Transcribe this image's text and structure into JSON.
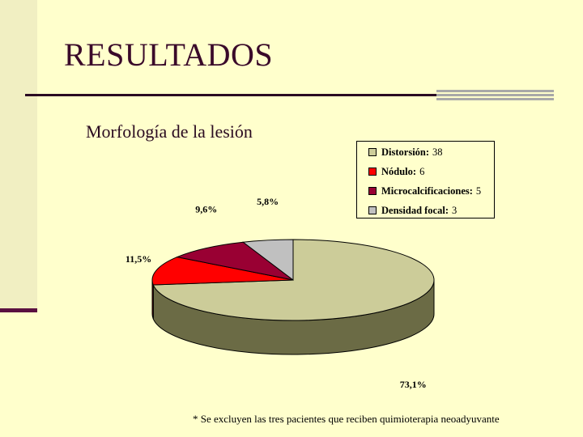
{
  "slide": {
    "title": "RESULTADOS",
    "subtitle": "Morfología de la lesión",
    "footnote": "* Se excluyen las tres pacientes que reciben quimioterapia neoadyuvante"
  },
  "colors": {
    "background": "#ffffcc",
    "distorsion": "#cccc99",
    "nodulo": "#ff0000",
    "microcalcificaciones": "#990033",
    "densidad": "#c0c0c0",
    "side_wall": "#6b6b45"
  },
  "chart_data": {
    "type": "pie",
    "title": "",
    "three_d": true,
    "legend_position": "top-right",
    "categories": [
      "Distorsión",
      "Nódulo",
      "Microcalcificaciones",
      "Densidad focal"
    ],
    "values": [
      38,
      6,
      5,
      3
    ],
    "value_labels": [
      "38",
      "6",
      "5",
      "3"
    ],
    "percent_labels": [
      "73,1%",
      "11,5%",
      "9,6%",
      "5,8%"
    ],
    "legend": [
      {
        "name": "Distorsión:",
        "value": "38"
      },
      {
        "name": "Nódulo:",
        "value": "6"
      },
      {
        "name": "Microcalcificaciones:",
        "value": "5"
      },
      {
        "name": "Densidad focal:",
        "value": "3"
      }
    ]
  }
}
